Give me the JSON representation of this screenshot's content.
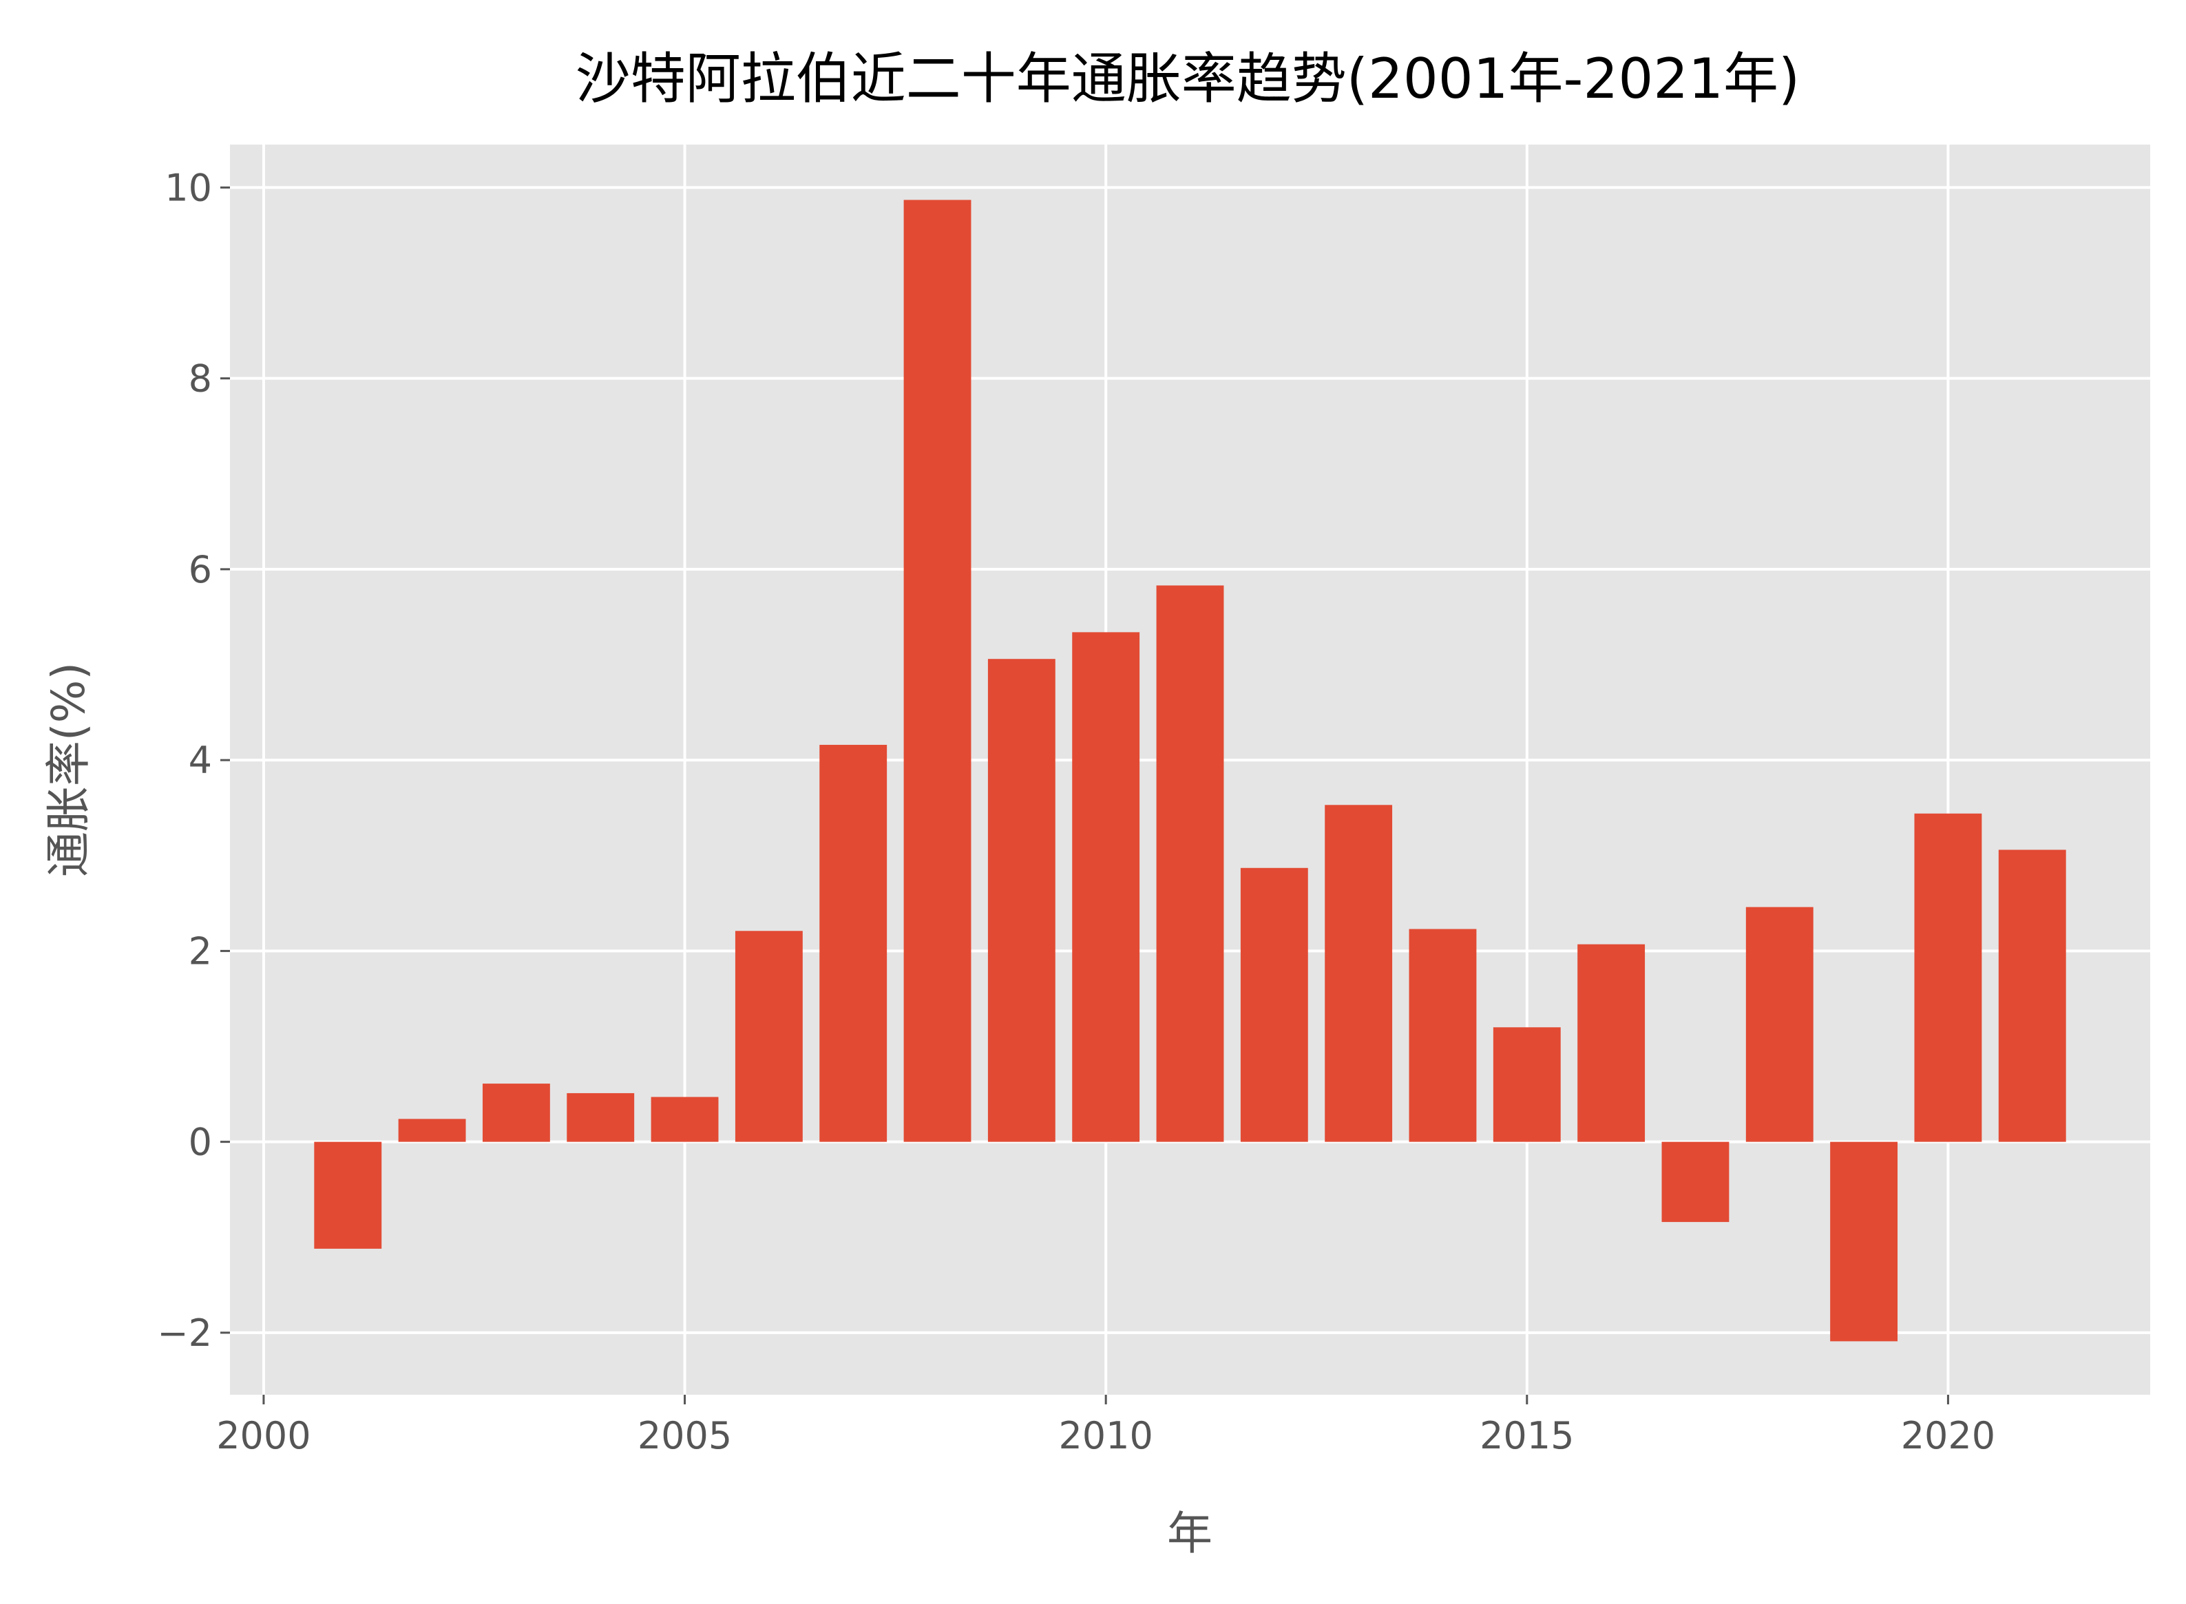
{
  "chart_data": {
    "type": "bar",
    "title": "沙特阿拉伯近二十年通胀率趋势(2001年-2021年)",
    "xlabel": "年",
    "ylabel": "通胀率(%)",
    "x": [
      2001,
      2002,
      2003,
      2004,
      2005,
      2006,
      2007,
      2008,
      2009,
      2010,
      2011,
      2012,
      2013,
      2014,
      2015,
      2016,
      2017,
      2018,
      2019,
      2020,
      2021
    ],
    "values": [
      -1.12,
      0.24,
      0.61,
      0.51,
      0.47,
      2.21,
      4.16,
      9.87,
      5.06,
      5.34,
      5.83,
      2.87,
      3.53,
      2.23,
      1.2,
      2.07,
      -0.84,
      2.46,
      -2.09,
      3.44,
      3.06
    ],
    "xlim": [
      1999.6,
      2022.4
    ],
    "ylim": [
      -2.65,
      10.45
    ],
    "xticks": [
      2000,
      2005,
      2010,
      2015,
      2020
    ],
    "xtick_labels": [
      "2000",
      "2005",
      "2010",
      "2015",
      "2020"
    ],
    "yticks": [
      -2,
      0,
      2,
      4,
      6,
      8,
      10
    ],
    "ytick_labels": [
      "−2",
      "0",
      "2",
      "4",
      "6",
      "8",
      "10"
    ],
    "grid": true,
    "colors": {
      "bar": "#E24A33",
      "plot_background": "#E5E5E5",
      "grid": "#FFFFFF",
      "tick_text": "#555555",
      "title_text": "#000000"
    }
  }
}
